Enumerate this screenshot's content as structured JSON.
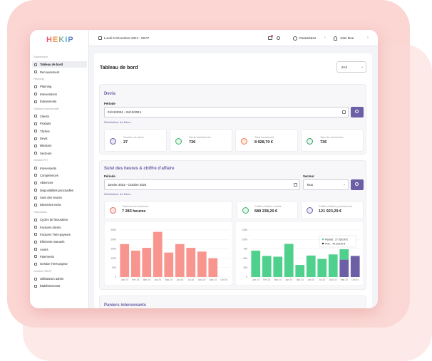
{
  "app": {
    "logo": "HEKIP",
    "date": "Lundi 5 Décembre 2024 - 09:07",
    "settings": "Paramètres",
    "user": "John Doe"
  },
  "sidebar": [
    {
      "section": "Supervision",
      "items": [
        "Tableau de bord",
        "Recouvrement"
      ]
    },
    {
      "section": "Planning",
      "items": [
        "Planning",
        "Interventions",
        "Évènements"
      ]
    },
    {
      "section": "Gestion commerciale",
      "items": [
        "Clients",
        "Produits",
        "Tâches",
        "Devis",
        "Missions",
        "Secteurs"
      ]
    },
    {
      "section": "Gestion RH",
      "items": [
        "Intervenants",
        "Compétences",
        "Absences",
        "Disponibilités ponctuelles",
        "Suivi des heures",
        "Dépenses extra"
      ]
    },
    {
      "section": "Facturation",
      "items": [
        "Cycles de facturation",
        "Factures clients",
        "Factures Tiers-payeurs",
        "Éléments manuels",
        "Avoirs",
        "Paiements",
        "Gestion Tiers-payeur"
      ]
    },
    {
      "section": "Gestion HEKIP",
      "items": [
        "Utilisateurs admin",
        "Établissements"
      ]
    }
  ],
  "page": {
    "title": "Tableau de bord",
    "establishment": "2A3"
  },
  "devis": {
    "title": "Devis",
    "period_label": "Période",
    "period": "01/12/2024 - 31/12/2024",
    "reset": "Réinitialiser les filtres",
    "stats": [
      {
        "label": "Nombre de devis",
        "value": "27"
      },
      {
        "label": "Devis transformés",
        "value": "736"
      },
      {
        "label": "Total transformé",
        "value": "8 928,70 €"
      },
      {
        "label": "Taux de conversion",
        "value": "736"
      }
    ]
  },
  "suivi": {
    "title": "Suivi des heures & chiffre d'affaire",
    "period_label": "Période",
    "period": "Janvier 2024 - Octobre 2024",
    "sector_label": "Secteur",
    "sector": "Tous",
    "reset": "Réinitialiser les filtres",
    "stats": [
      {
        "label": "Total heures facturées",
        "value": "7 283 heures"
      },
      {
        "label": "Chiffre d'affaire réalisé",
        "value": "689 238,20 €"
      },
      {
        "label": "Chiffre d'affaire prévisionnel",
        "value": "121 923,29 €"
      }
    ]
  },
  "charts": [
    {
      "type": "bar",
      "categories": [
        "Jan 24",
        "Fév 24",
        "Mar 24",
        "Avr 24",
        "Mai 24",
        "Jun 24",
        "Jui 24",
        "Aoû 24",
        "Sep 24",
        "Oct 24"
      ],
      "values": [
        1750,
        1400,
        1550,
        2400,
        1300,
        1750,
        1550,
        1350,
        1000,
        null
      ],
      "color": "#f7958e",
      "ylim": [
        0,
        2500
      ],
      "yticks": [
        0,
        500,
        1000,
        1500,
        2000,
        2500
      ],
      "grid": true
    },
    {
      "type": "stacked_bar",
      "categories": [
        "Jan 24",
        "Fév 24",
        "Mar 24",
        "Avr 24",
        "Mai 24",
        "Jun 24",
        "Jui 24",
        "Aoû 24",
        "Sep 24",
        "Oct 24"
      ],
      "series": [
        {
          "color": "#6c5fa6",
          "values": [
            null,
            null,
            null,
            null,
            null,
            null,
            null,
            null,
            46203,
            56000
          ]
        },
        {
          "color": "#4fd08c",
          "values": [
            70000,
            56000,
            54000,
            88000,
            32000,
            57000,
            48000,
            60000,
            27528,
            null
          ]
        }
      ],
      "ylim": [
        0,
        125000
      ],
      "yticks": [
        0,
        {
          "value": 25000,
          "label": "25k"
        },
        {
          "value": 50000,
          "label": "50k"
        },
        {
          "value": 75000,
          "label": "75k"
        },
        {
          "value": 100000,
          "label": "100k"
        },
        {
          "value": 125000,
          "label": "125k"
        }
      ],
      "grid": true,
      "tooltip": [
        "Réalisé : 27 528,00 €",
        "Prév. : 46 203,00 €"
      ]
    }
  ],
  "paniers": {
    "title": "Paniers intervenants"
  }
}
